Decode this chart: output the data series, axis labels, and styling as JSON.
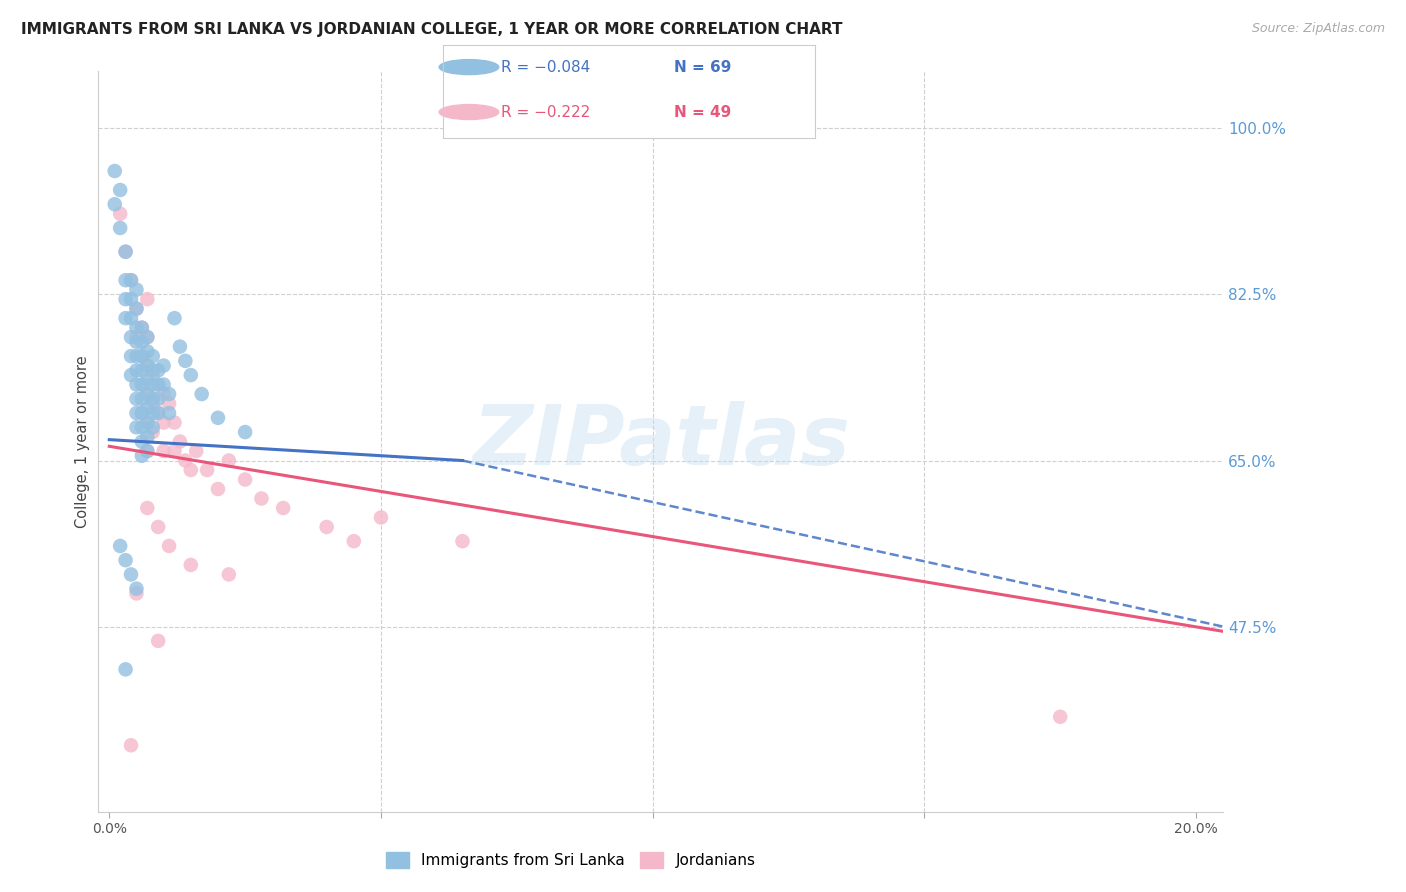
{
  "title": "IMMIGRANTS FROM SRI LANKA VS JORDANIAN COLLEGE, 1 YEAR OR MORE CORRELATION CHART",
  "source": "Source: ZipAtlas.com",
  "ylabel": "College, 1 year or more",
  "ymin": 0.28,
  "ymax": 1.06,
  "xmin": -0.002,
  "xmax": 0.205,
  "blue_color": "#92c0e0",
  "pink_color": "#f5b8cb",
  "blue_line_color": "#4472c4",
  "pink_line_color": "#e8567a",
  "blue_dash_color": "#7aadd4",
  "right_axis_color": "#5b9bd5",
  "grid_color": "#d0d0d0",
  "bg_color": "#ffffff",
  "watermark": "ZIPatlas",
  "right_yticks": [
    0.475,
    0.65,
    0.825,
    1.0
  ],
  "right_ytick_labels": [
    "47.5%",
    "65.0%",
    "82.5%",
    "100.0%"
  ],
  "blue_scatter": [
    [
      0.001,
      0.955
    ],
    [
      0.001,
      0.92
    ],
    [
      0.002,
      0.935
    ],
    [
      0.002,
      0.895
    ],
    [
      0.003,
      0.87
    ],
    [
      0.003,
      0.84
    ],
    [
      0.003,
      0.82
    ],
    [
      0.003,
      0.8
    ],
    [
      0.004,
      0.84
    ],
    [
      0.004,
      0.82
    ],
    [
      0.004,
      0.8
    ],
    [
      0.004,
      0.78
    ],
    [
      0.004,
      0.76
    ],
    [
      0.004,
      0.74
    ],
    [
      0.005,
      0.83
    ],
    [
      0.005,
      0.81
    ],
    [
      0.005,
      0.79
    ],
    [
      0.005,
      0.775
    ],
    [
      0.005,
      0.76
    ],
    [
      0.005,
      0.745
    ],
    [
      0.005,
      0.73
    ],
    [
      0.005,
      0.715
    ],
    [
      0.005,
      0.7
    ],
    [
      0.005,
      0.685
    ],
    [
      0.006,
      0.79
    ],
    [
      0.006,
      0.775
    ],
    [
      0.006,
      0.76
    ],
    [
      0.006,
      0.745
    ],
    [
      0.006,
      0.73
    ],
    [
      0.006,
      0.715
    ],
    [
      0.006,
      0.7
    ],
    [
      0.006,
      0.685
    ],
    [
      0.006,
      0.67
    ],
    [
      0.006,
      0.655
    ],
    [
      0.007,
      0.78
    ],
    [
      0.007,
      0.765
    ],
    [
      0.007,
      0.75
    ],
    [
      0.007,
      0.735
    ],
    [
      0.007,
      0.72
    ],
    [
      0.007,
      0.705
    ],
    [
      0.007,
      0.69
    ],
    [
      0.007,
      0.675
    ],
    [
      0.007,
      0.66
    ],
    [
      0.008,
      0.76
    ],
    [
      0.008,
      0.745
    ],
    [
      0.008,
      0.73
    ],
    [
      0.008,
      0.715
    ],
    [
      0.008,
      0.7
    ],
    [
      0.008,
      0.685
    ],
    [
      0.009,
      0.745
    ],
    [
      0.009,
      0.73
    ],
    [
      0.009,
      0.715
    ],
    [
      0.009,
      0.7
    ],
    [
      0.01,
      0.75
    ],
    [
      0.01,
      0.73
    ],
    [
      0.011,
      0.72
    ],
    [
      0.011,
      0.7
    ],
    [
      0.012,
      0.8
    ],
    [
      0.013,
      0.77
    ],
    [
      0.014,
      0.755
    ],
    [
      0.015,
      0.74
    ],
    [
      0.017,
      0.72
    ],
    [
      0.02,
      0.695
    ],
    [
      0.025,
      0.68
    ],
    [
      0.002,
      0.56
    ],
    [
      0.003,
      0.545
    ],
    [
      0.004,
      0.53
    ],
    [
      0.005,
      0.515
    ],
    [
      0.003,
      0.43
    ]
  ],
  "pink_scatter": [
    [
      0.002,
      0.91
    ],
    [
      0.003,
      0.87
    ],
    [
      0.004,
      0.84
    ],
    [
      0.005,
      0.81
    ],
    [
      0.005,
      0.78
    ],
    [
      0.006,
      0.79
    ],
    [
      0.006,
      0.76
    ],
    [
      0.006,
      0.73
    ],
    [
      0.006,
      0.7
    ],
    [
      0.007,
      0.78
    ],
    [
      0.007,
      0.75
    ],
    [
      0.007,
      0.72
    ],
    [
      0.007,
      0.69
    ],
    [
      0.007,
      0.66
    ],
    [
      0.007,
      0.82
    ],
    [
      0.008,
      0.74
    ],
    [
      0.008,
      0.71
    ],
    [
      0.008,
      0.68
    ],
    [
      0.009,
      0.73
    ],
    [
      0.009,
      0.7
    ],
    [
      0.01,
      0.72
    ],
    [
      0.01,
      0.69
    ],
    [
      0.01,
      0.66
    ],
    [
      0.011,
      0.71
    ],
    [
      0.012,
      0.69
    ],
    [
      0.012,
      0.66
    ],
    [
      0.013,
      0.67
    ],
    [
      0.014,
      0.65
    ],
    [
      0.015,
      0.64
    ],
    [
      0.016,
      0.66
    ],
    [
      0.018,
      0.64
    ],
    [
      0.02,
      0.62
    ],
    [
      0.022,
      0.65
    ],
    [
      0.025,
      0.63
    ],
    [
      0.028,
      0.61
    ],
    [
      0.032,
      0.6
    ],
    [
      0.04,
      0.58
    ],
    [
      0.045,
      0.565
    ],
    [
      0.05,
      0.59
    ],
    [
      0.065,
      0.565
    ],
    [
      0.007,
      0.6
    ],
    [
      0.009,
      0.58
    ],
    [
      0.011,
      0.56
    ],
    [
      0.015,
      0.54
    ],
    [
      0.022,
      0.53
    ],
    [
      0.005,
      0.51
    ],
    [
      0.009,
      0.46
    ],
    [
      0.175,
      0.38
    ],
    [
      0.004,
      0.35
    ]
  ],
  "blue_line_solid": {
    "x0": 0.0,
    "x1": 0.065,
    "y0": 0.672,
    "y1": 0.65
  },
  "blue_line_dash": {
    "x0": 0.065,
    "x1": 0.205,
    "y0": 0.65,
    "y1": 0.475
  },
  "pink_line": {
    "x0": 0.0,
    "x1": 0.205,
    "y0": 0.665,
    "y1": 0.47
  }
}
